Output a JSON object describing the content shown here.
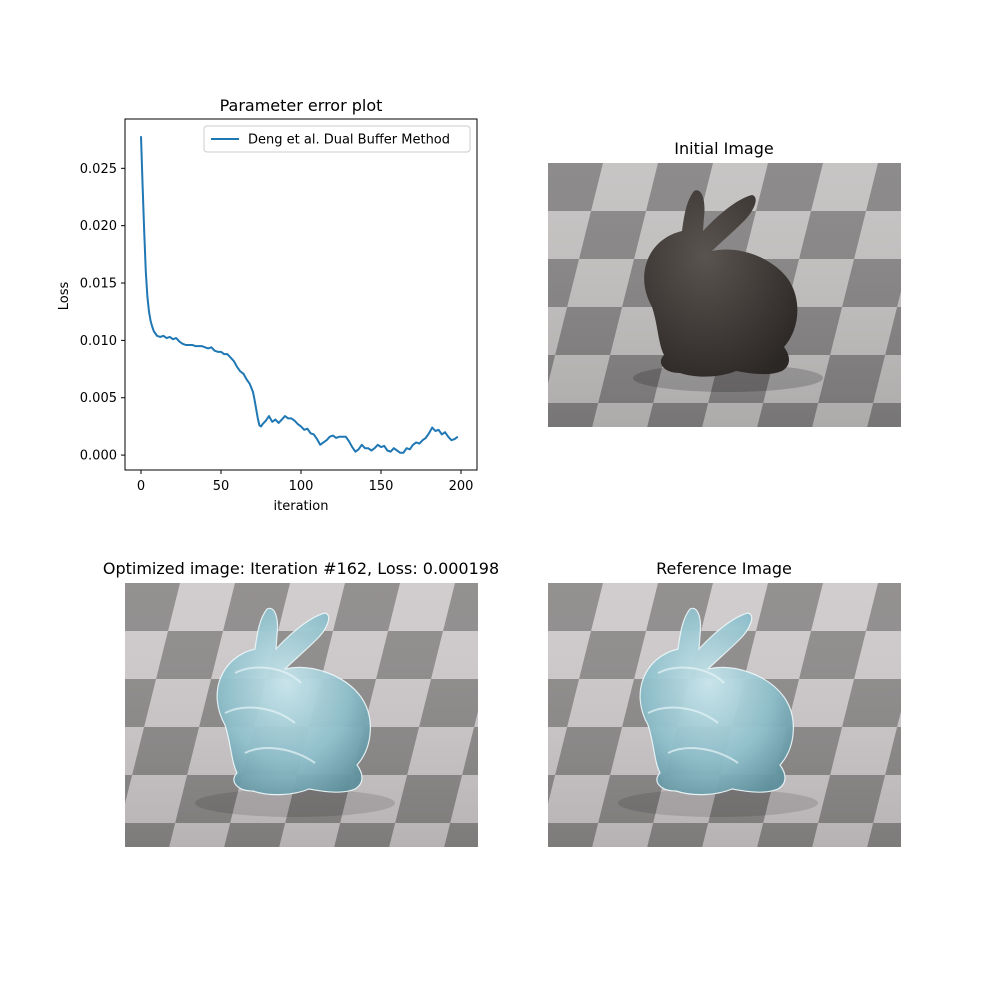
{
  "figure": {
    "panels": [
      {
        "title": "Initial Image",
        "scene": "dark-bunny-on-checkerboard",
        "bunny_color": "#3d3835"
      },
      {
        "title": "Optimized image: Iteration #162, Loss: 0.000198",
        "scene": "glass-bunny-on-checkerboard",
        "bunny_color": "#9ec9d3"
      },
      {
        "title": "Reference Image",
        "scene": "glass-bunny-on-checkerboard",
        "bunny_color": "#9ec9d3"
      }
    ]
  },
  "chart_data": {
    "type": "line",
    "title": "Parameter error plot",
    "xlabel": "iteration",
    "ylabel": "Loss",
    "xlim": [
      -10,
      210
    ],
    "ylim": [
      -0.0013,
      0.0293
    ],
    "xticks": [
      0,
      50,
      100,
      150,
      200
    ],
    "yticks": [
      0.0,
      0.005,
      0.01,
      0.015,
      0.02,
      0.025
    ],
    "ytick_labels": [
      "0.000",
      "0.005",
      "0.010",
      "0.015",
      "0.020",
      "0.025"
    ],
    "grid": false,
    "legend": "top-right",
    "series": [
      {
        "name": "Deng et al. Dual Buffer Method",
        "color": "#1f77b4",
        "x": [
          0,
          1,
          2,
          3,
          4,
          5,
          6,
          7,
          8,
          9,
          10,
          12,
          14,
          16,
          18,
          20,
          22,
          24,
          26,
          28,
          30,
          32,
          34,
          36,
          38,
          40,
          42,
          44,
          46,
          48,
          50,
          52,
          54,
          56,
          58,
          60,
          62,
          64,
          66,
          68,
          70,
          71,
          72,
          73,
          74,
          75,
          76,
          78,
          80,
          82,
          84,
          86,
          88,
          90,
          92,
          94,
          96,
          98,
          100,
          102,
          104,
          106,
          108,
          110,
          112,
          114,
          116,
          118,
          120,
          122,
          124,
          126,
          128,
          130,
          132,
          134,
          136,
          138,
          140,
          142,
          144,
          146,
          148,
          150,
          152,
          154,
          156,
          158,
          160,
          162,
          164,
          166,
          168,
          170,
          172,
          174,
          176,
          178,
          180,
          182,
          184,
          186,
          188,
          190,
          192,
          194,
          196,
          198
        ],
        "values": [
          0.0278,
          0.0235,
          0.0195,
          0.016,
          0.0138,
          0.0125,
          0.0117,
          0.0112,
          0.0108,
          0.0106,
          0.0104,
          0.0103,
          0.0104,
          0.0102,
          0.0103,
          0.0101,
          0.0102,
          0.0099,
          0.0097,
          0.0096,
          0.0096,
          0.0096,
          0.0095,
          0.0095,
          0.0095,
          0.0094,
          0.0093,
          0.0094,
          0.0091,
          0.009,
          0.009,
          0.0088,
          0.0088,
          0.0085,
          0.0082,
          0.0077,
          0.0073,
          0.0071,
          0.0066,
          0.0062,
          0.0055,
          0.0048,
          0.004,
          0.0032,
          0.0026,
          0.0025,
          0.0027,
          0.003,
          0.0034,
          0.0029,
          0.0031,
          0.0028,
          0.0031,
          0.0034,
          0.0032,
          0.0032,
          0.003,
          0.0027,
          0.0025,
          0.0022,
          0.0023,
          0.0019,
          0.0018,
          0.0014,
          0.0009,
          0.0011,
          0.0013,
          0.0016,
          0.0017,
          0.0015,
          0.0016,
          0.0016,
          0.0016,
          0.0012,
          0.0007,
          0.0003,
          0.0005,
          0.0009,
          0.0006,
          0.0006,
          0.0004,
          0.0006,
          0.0009,
          0.0007,
          0.0008,
          0.0004,
          0.0003,
          0.0006,
          0.0004,
          0.0002,
          0.0002,
          0.0006,
          0.0005,
          0.0009,
          0.0011,
          0.001,
          0.0013,
          0.0015,
          0.0019,
          0.0024,
          0.0021,
          0.0022,
          0.0018,
          0.002,
          0.0016,
          0.0013,
          0.0014,
          0.0016
        ]
      }
    ]
  }
}
